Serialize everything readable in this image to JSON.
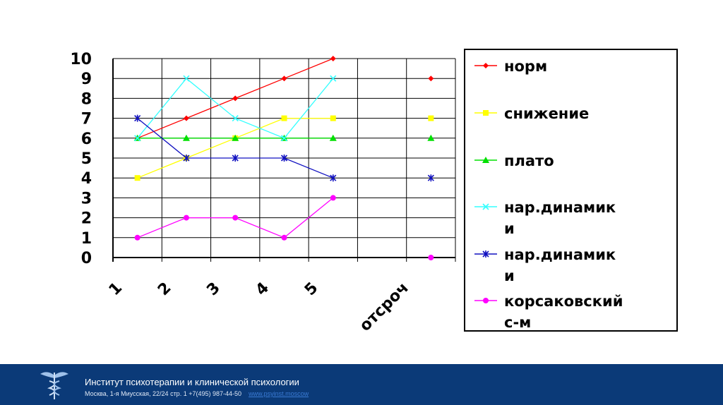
{
  "chart_data": {
    "type": "line",
    "categories": [
      "1",
      "2",
      "3",
      "4",
      "5",
      "",
      "отсроч"
    ],
    "ylim": [
      0,
      10
    ],
    "yticks": [
      "0",
      "1",
      "2",
      "3",
      "4",
      "5",
      "6",
      "7",
      "8",
      "9",
      "10"
    ],
    "grid": true,
    "legend_position": "right",
    "series": [
      {
        "name": "норм",
        "color": "#ff0000",
        "marker": "diamond",
        "values": [
          6,
          7,
          8,
          9,
          10,
          null,
          9
        ]
      },
      {
        "name": "снижение",
        "color": "#ffff00",
        "marker": "square",
        "values": [
          4,
          5,
          6,
          7,
          7,
          null,
          7
        ]
      },
      {
        "name": "плато",
        "color": "#00e000",
        "marker": "triangle",
        "values": [
          6,
          6,
          6,
          6,
          6,
          null,
          6
        ]
      },
      {
        "name": "нар.динамики",
        "color": "#33ffff",
        "marker": "x",
        "values": [
          6,
          9,
          7,
          6,
          9,
          null,
          null
        ]
      },
      {
        "name": "нар.динамики",
        "color": "#1010c0",
        "marker": "star",
        "values": [
          7,
          5,
          5,
          5,
          4,
          null,
          4
        ]
      },
      {
        "name": "корсаковский с-м",
        "color": "#ff00ff",
        "marker": "circle",
        "values": [
          1,
          2,
          2,
          1,
          3,
          null,
          0
        ]
      }
    ],
    "legend_lines": [
      [
        "норм"
      ],
      [
        "снижение"
      ],
      [
        "плато"
      ],
      [
        "нар.динамик",
        "и"
      ],
      [
        "нар.динамик",
        "и"
      ],
      [
        "корсаковский",
        "с-м"
      ]
    ]
  },
  "footer": {
    "title": "Институт психотерапии и клинической психологии",
    "address": "Москва, 1-я Миусская, 22/24 стр. 1 +7(495) 987-44-50",
    "link": "www.psyinst.moscow",
    "bg_color": "#0b3a78",
    "logo_icon": "caduceus-logo-icon"
  }
}
